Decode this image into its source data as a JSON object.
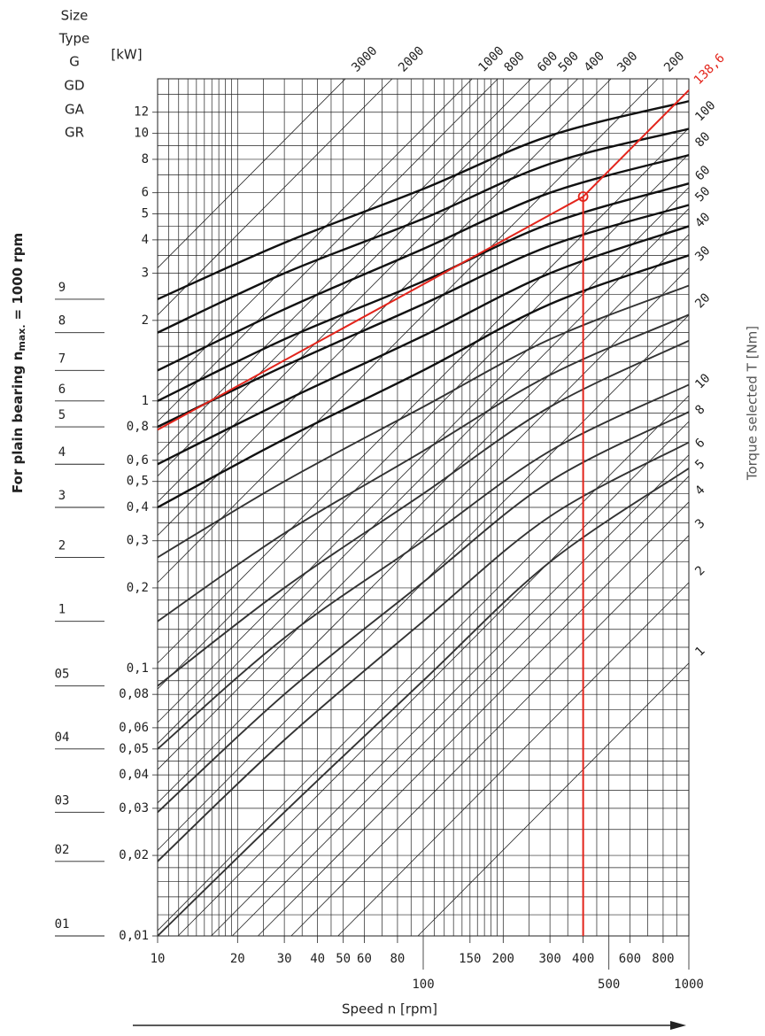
{
  "chart_data": {
    "type": "line",
    "header": [
      "Size",
      "Type",
      "G",
      "GD",
      "GA",
      "GR"
    ],
    "y_unit": "[kW]",
    "side_title": {
      "text": "For plain bearing n",
      "subscript": "max.",
      "suffix": "= 1000 rpm"
    },
    "y2_title": "Torque selected T [Nm]",
    "x_title": "Speed n [rpm]",
    "log_x": true,
    "log_y": true,
    "xlim": [
      10,
      1000
    ],
    "ylim": [
      0.01,
      16
    ],
    "xticks": [
      10,
      20,
      30,
      40,
      50,
      60,
      80,
      100,
      150,
      200,
      300,
      400,
      500,
      600,
      800,
      1000
    ],
    "yticks": [
      12,
      10,
      8,
      6,
      5,
      4,
      3,
      2,
      1,
      {
        "value": 0.8,
        "label": "0,8"
      },
      {
        "value": 0.6,
        "label": "0,6"
      },
      {
        "value": 0.5,
        "label": "0,5"
      },
      {
        "value": 0.4,
        "label": "0,4"
      },
      {
        "value": 0.3,
        "label": "0,3"
      },
      {
        "value": 0.2,
        "label": "0,2"
      },
      {
        "value": 0.1,
        "label": "0,1"
      },
      {
        "value": 0.08,
        "label": "0,08"
      },
      {
        "value": 0.06,
        "label": "0,06"
      },
      {
        "value": 0.05,
        "label": "0,05"
      },
      {
        "value": 0.04,
        "label": "0,04"
      },
      {
        "value": 0.03,
        "label": "0,03"
      },
      {
        "value": 0.02,
        "label": "0,02"
      },
      {
        "value": 0.01,
        "label": "0,01"
      }
    ],
    "xgrid": [
      10,
      11,
      12,
      13,
      14,
      15,
      16,
      17,
      18,
      19,
      20,
      25,
      30,
      35,
      40,
      45,
      50,
      60,
      70,
      80,
      90,
      100,
      110,
      120,
      130,
      140,
      150,
      160,
      170,
      180,
      190,
      200,
      250,
      300,
      350,
      400,
      450,
      500,
      600,
      700,
      800,
      900,
      1000
    ],
    "ygrid": [
      0.01,
      0.012,
      0.014,
      0.016,
      0.018,
      0.02,
      0.025,
      0.03,
      0.035,
      0.04,
      0.045,
      0.05,
      0.06,
      0.07,
      0.08,
      0.09,
      0.1,
      0.12,
      0.14,
      0.16,
      0.18,
      0.2,
      0.25,
      0.3,
      0.35,
      0.4,
      0.45,
      0.5,
      0.6,
      0.7,
      0.8,
      0.9,
      1,
      1.2,
      1.4,
      1.6,
      1.8,
      2,
      2.5,
      3,
      3.5,
      4,
      4.5,
      5,
      6,
      7,
      8,
      9,
      10,
      12,
      14,
      16
    ],
    "grid": true,
    "torque_lines": {
      "color": "#222222",
      "values": [
        3000,
        2000,
        1000,
        800,
        600,
        500,
        400,
        300,
        200,
        100,
        80,
        60,
        50,
        40,
        30,
        20,
        10,
        8,
        6,
        5,
        4,
        3,
        2,
        1
      ]
    },
    "x": [
      10,
      30,
      100,
      300,
      1000
    ],
    "series": [
      {
        "name": "9",
        "color": "#111111",
        "values": [
          2.4,
          3.9,
          6.2,
          9.8,
          13.2
        ]
      },
      {
        "name": "8",
        "color": "#111111",
        "values": [
          1.8,
          3.0,
          4.8,
          7.7,
          10.4
        ]
      },
      {
        "name": "7",
        "color": "#111111",
        "values": [
          1.3,
          2.2,
          3.7,
          6.0,
          8.3
        ]
      },
      {
        "name": "6",
        "color": "#111111",
        "values": [
          1.0,
          1.7,
          2.8,
          4.6,
          6.5
        ]
      },
      {
        "name": "5",
        "color": "#111111",
        "values": [
          0.8,
          1.35,
          2.3,
          3.8,
          5.4
        ]
      },
      {
        "name": "4",
        "color": "#111111",
        "values": [
          0.58,
          1.0,
          1.75,
          3.0,
          4.5
        ]
      },
      {
        "name": "3",
        "color": "#111111",
        "values": [
          0.4,
          0.72,
          1.3,
          2.3,
          3.5
        ]
      },
      {
        "name": "2",
        "color": "#333333",
        "values": [
          0.26,
          0.5,
          0.95,
          1.7,
          2.7
        ]
      },
      {
        "name": "1",
        "color": "#333333",
        "values": [
          0.15,
          0.32,
          0.65,
          1.25,
          2.1
        ]
      },
      {
        "name": "05",
        "color": "#333333",
        "values": [
          0.086,
          0.2,
          0.45,
          0.95,
          1.68
        ]
      },
      {
        "name": "04",
        "color": "#333333",
        "values": [
          0.05,
          0.13,
          0.3,
          0.65,
          1.15
        ]
      },
      {
        "name": "03",
        "color": "#333333",
        "values": [
          0.029,
          0.08,
          0.21,
          0.5,
          0.91
        ]
      },
      {
        "name": "02",
        "color": "#333333",
        "values": [
          0.019,
          0.054,
          0.15,
          0.37,
          0.7
        ]
      },
      {
        "name": "01",
        "color": "#333333",
        "values": [
          0.01,
          0.029,
          0.09,
          0.25,
          0.56
        ]
      }
    ],
    "selection": {
      "color": "#e3241b",
      "speed": 400,
      "torque": {
        "value": 138.6,
        "label": "138,6"
      },
      "x": [
        10,
        400
      ],
      "values": [
        0.78,
        5.8
      ]
    }
  }
}
